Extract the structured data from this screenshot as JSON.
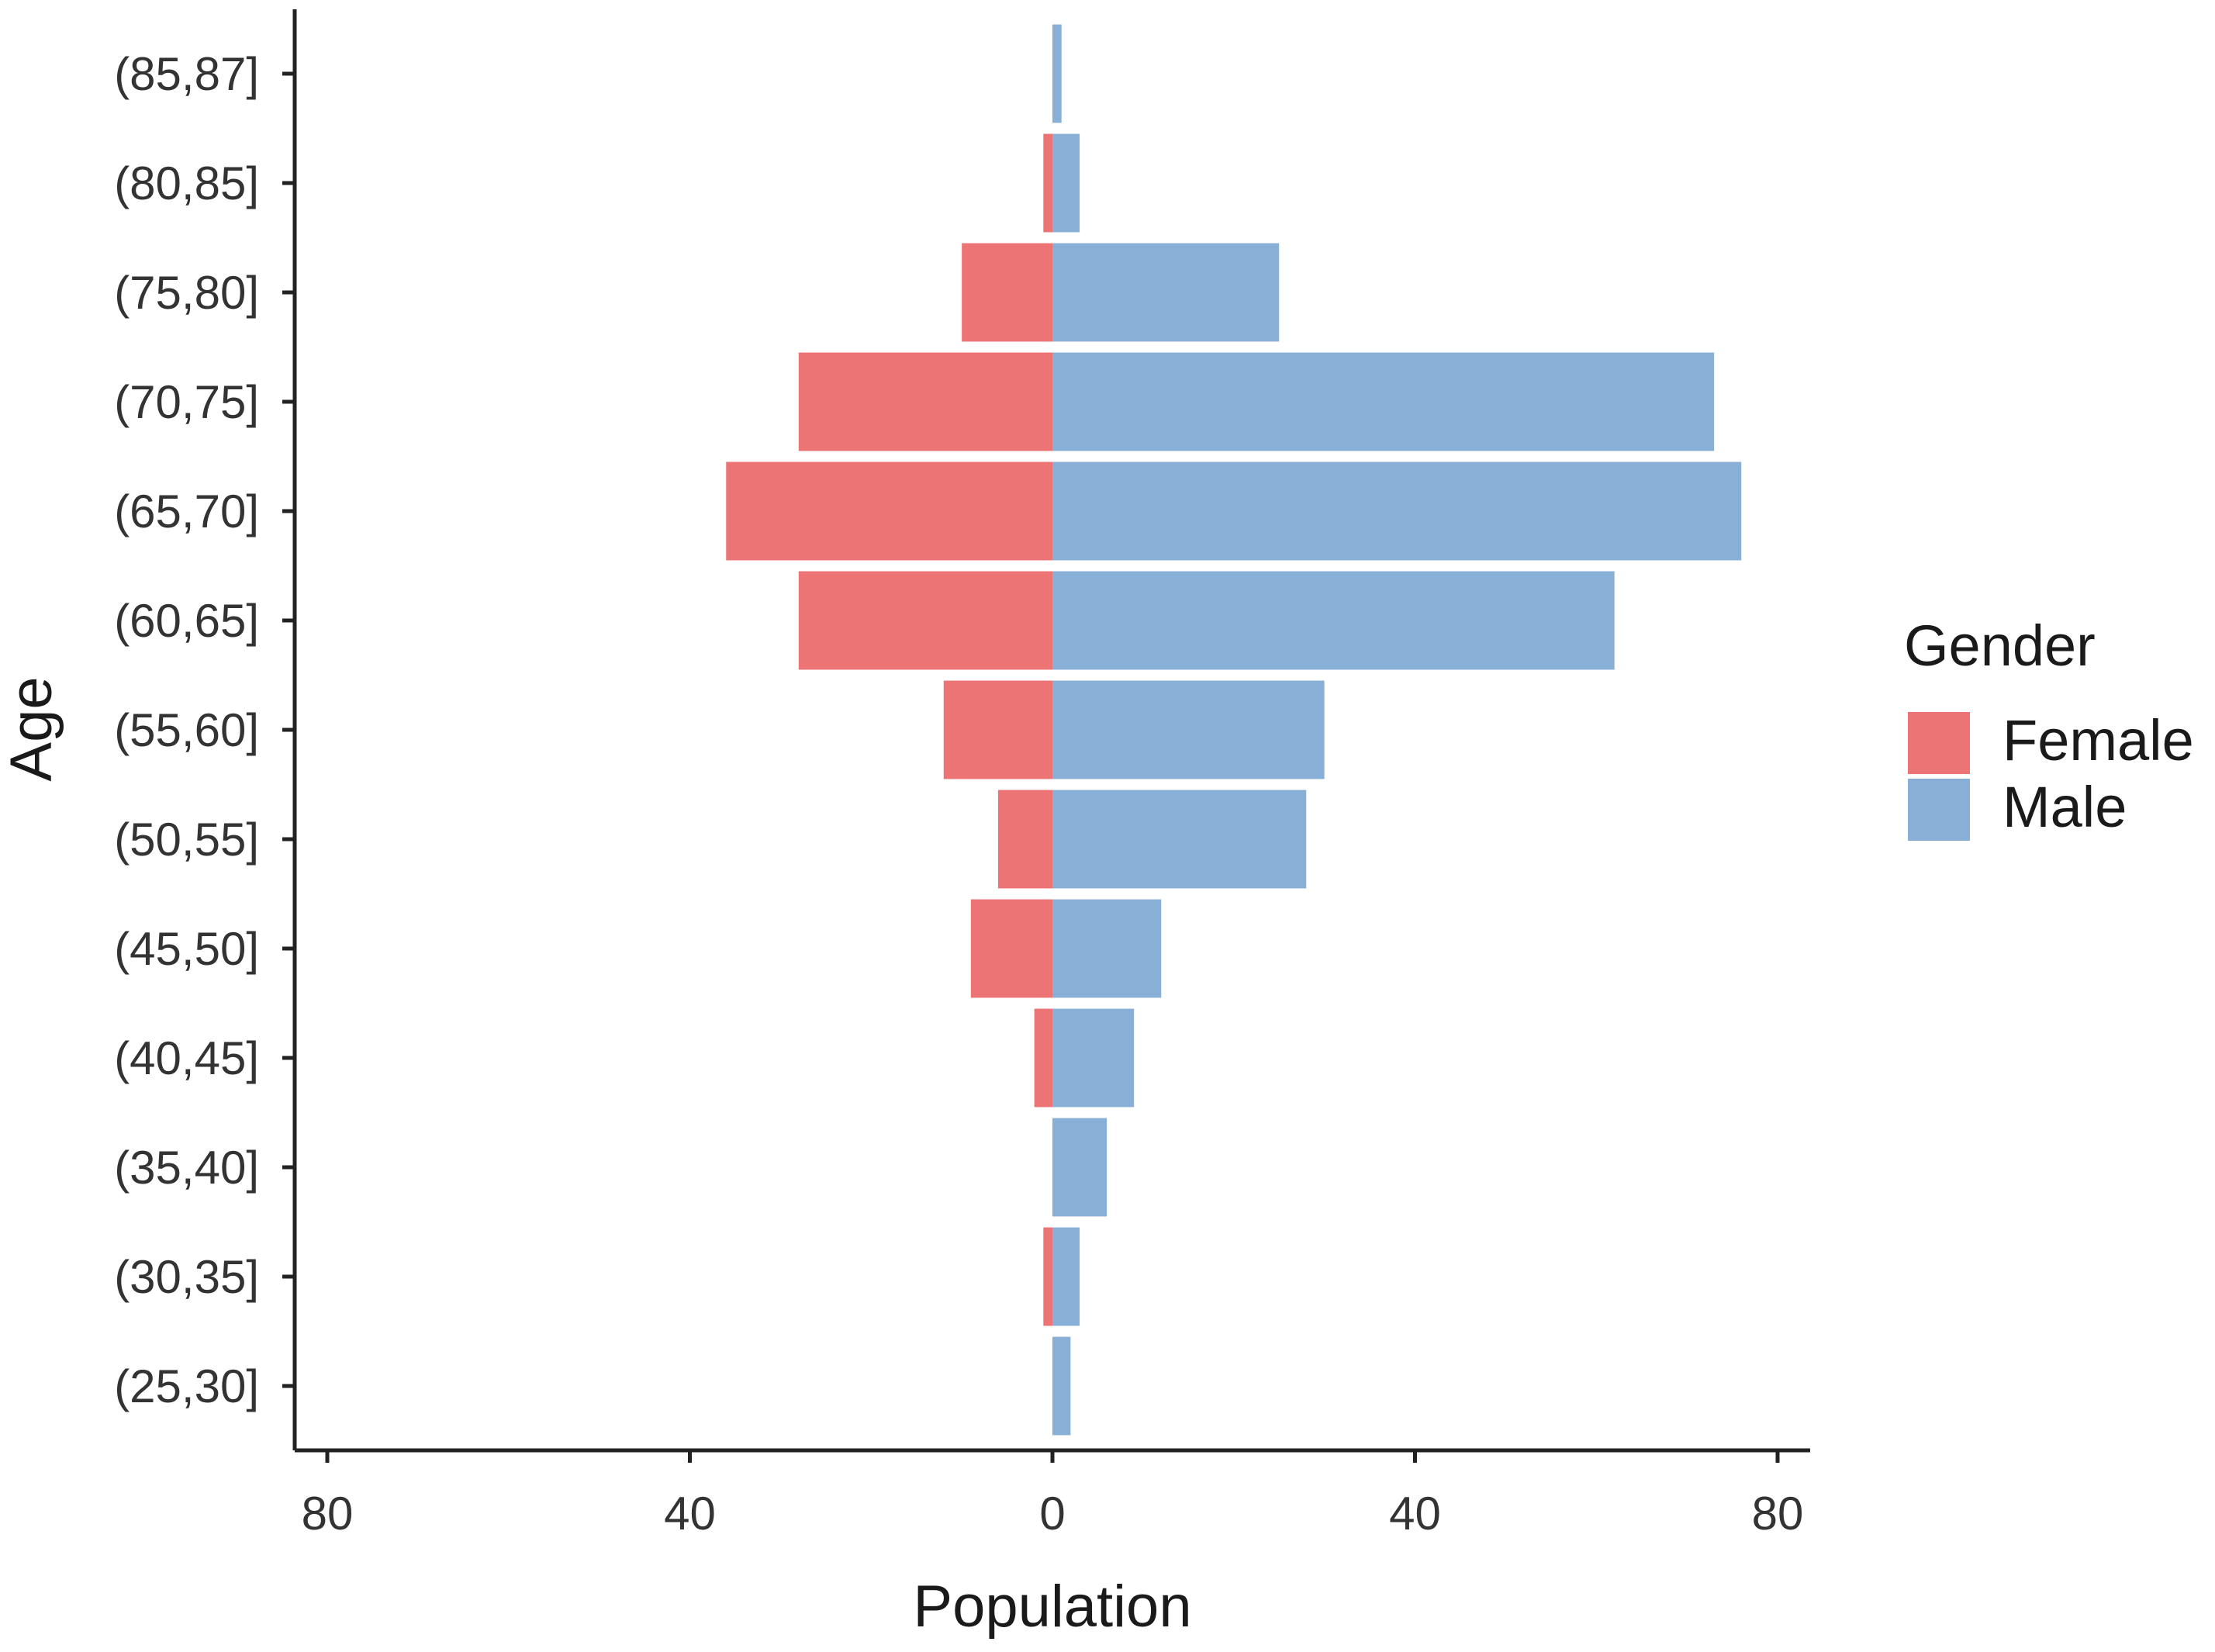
{
  "chart_data": {
    "type": "bar",
    "orientation": "horizontal",
    "variant": "population-pyramid",
    "title": "",
    "xlabel": "Population",
    "ylabel": "Age",
    "xlim": [
      -80,
      80
    ],
    "x_ticks": [
      -80,
      -40,
      0,
      40,
      80
    ],
    "x_tick_labels": [
      "80",
      "40",
      "0",
      "40",
      "80"
    ],
    "categories": [
      "(25,30]",
      "(30,35]",
      "(35,40]",
      "(40,45]",
      "(45,50]",
      "(50,55]",
      "(55,60]",
      "(60,65]",
      "(65,70]",
      "(70,75]",
      "(75,80]",
      "(80,85]",
      "(85,87]"
    ],
    "series": [
      {
        "name": "Female",
        "color": "#ED7474",
        "values": [
          0,
          1,
          0,
          2,
          9,
          6,
          12,
          28,
          36,
          28,
          10,
          1,
          0
        ]
      },
      {
        "name": "Male",
        "color": "#88B0D6",
        "values": [
          2,
          3,
          6,
          9,
          12,
          28,
          30,
          62,
          76,
          73,
          25,
          3,
          1
        ]
      }
    ],
    "legend": {
      "title": "Gender",
      "position": "right",
      "items": [
        "Female",
        "Male"
      ]
    },
    "grid": false
  }
}
